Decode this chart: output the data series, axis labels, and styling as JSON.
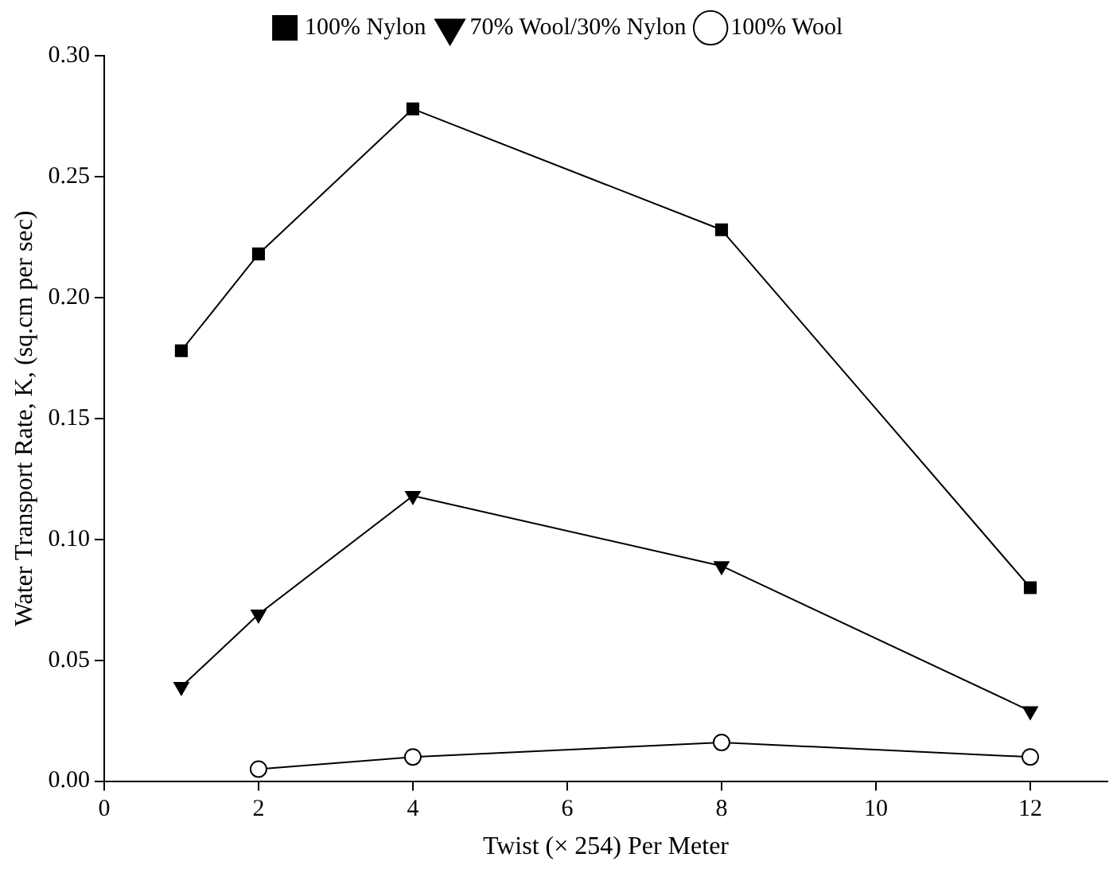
{
  "chart_data": {
    "type": "line",
    "xlabel": "Twist (× 254) Per Meter",
    "ylabel": "Water Transport Rate, K, (sq.cm per sec)",
    "x": [
      1,
      2,
      4,
      8,
      12
    ],
    "series": [
      {
        "name": "100% Nylon",
        "color": "#000000",
        "marker": "square",
        "values": [
          0.178,
          0.218,
          0.278,
          0.228,
          0.08
        ]
      },
      {
        "name": "70% Wool/30% Nylon",
        "color": "#000000",
        "marker": "triangle",
        "values": [
          0.039,
          0.069,
          0.118,
          0.089,
          0.029
        ]
      },
      {
        "name": "100% Wool",
        "color": "#000000",
        "marker": "circle",
        "values": [
          null,
          0.005,
          0.01,
          0.016,
          0.01
        ]
      }
    ],
    "xlim": [
      0,
      13
    ],
    "xticks": [
      0,
      2,
      4,
      6,
      8,
      10,
      12
    ],
    "ylim": [
      0,
      0.3
    ],
    "yticks": [
      {
        "value": 0,
        "label": "0.00"
      },
      {
        "value": 0.05,
        "label": "0.05"
      },
      {
        "value": 0.1,
        "label": "0.10"
      },
      {
        "value": 0.15,
        "label": "0.15"
      },
      {
        "value": 0.2,
        "label": "0.20"
      },
      {
        "value": 0.25,
        "label": "0.25"
      },
      {
        "value": 0.3,
        "label": "0.30"
      }
    ],
    "grid": false,
    "legend": "top"
  }
}
